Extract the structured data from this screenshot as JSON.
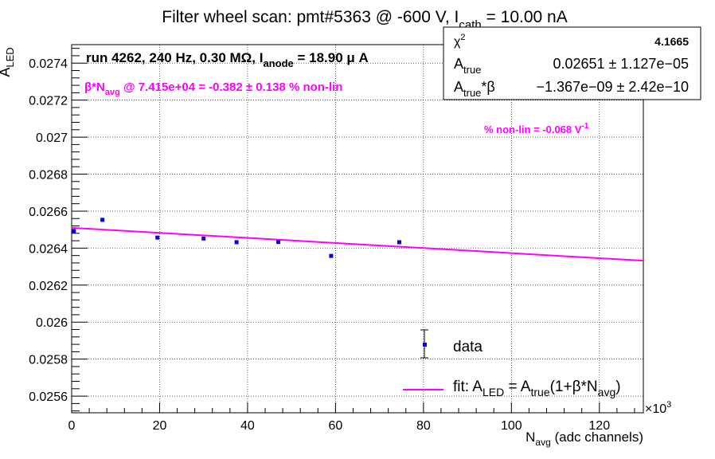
{
  "chart_data": {
    "type": "scatter",
    "title": {
      "main": "Filter wheel scan: pmt#5363 @  -600 V, I",
      "main_sub": "cath",
      "main_tail": " = 10.00 nA"
    },
    "xlabel": {
      "main": "N",
      "sub": "avg",
      "tail": " (adc channels)"
    },
    "ylabel": {
      "main": "A",
      "sub": "LED"
    },
    "x_multiplier": {
      "main": "×10",
      "sup": "3"
    },
    "xlim": [
      0,
      130
    ],
    "ylim": [
      0.02551,
      0.0275
    ],
    "x_ticks": [
      0,
      20,
      40,
      60,
      80,
      100,
      120
    ],
    "x_tick_labels": [
      "0",
      "20",
      "40",
      "60",
      "80",
      "100",
      "120"
    ],
    "y_ticks": [
      0.0256,
      0.0258,
      0.026,
      0.0262,
      0.0264,
      0.0266,
      0.0268,
      0.027,
      0.0272,
      0.0274
    ],
    "y_tick_labels": [
      "0.0256",
      "0.0258",
      "0.026",
      "0.0262",
      "0.0264",
      "0.0266",
      "0.0268",
      "0.027",
      "0.0272",
      "0.0274"
    ],
    "grid": true,
    "series": [
      {
        "name": "data",
        "kind": "points",
        "color": "#0000ff",
        "points": [
          {
            "x": 0.5,
            "y": 0.026493,
            "err": 6e-06
          },
          {
            "x": 7.0,
            "y": 0.026553,
            "err": 6e-06
          },
          {
            "x": 19.5,
            "y": 0.026457,
            "err": 6e-06
          },
          {
            "x": 30.0,
            "y": 0.026452,
            "err": 5e-06
          },
          {
            "x": 37.5,
            "y": 0.026432,
            "err": 6e-06
          },
          {
            "x": 47.0,
            "y": 0.026433,
            "err": 7e-06
          },
          {
            "x": 59.0,
            "y": 0.026358,
            "err": 7e-06
          },
          {
            "x": 74.5,
            "y": 0.026432,
            "err": 4e-06
          }
        ]
      },
      {
        "name": "fit",
        "kind": "line",
        "color": "#ff00ff",
        "x": [
          0,
          130
        ],
        "y": [
          0.02651,
          0.026332
        ]
      }
    ],
    "legend": {
      "position": "bottom-right",
      "data_label": "data",
      "fit_label": {
        "p1": "fit: A",
        "s1": "LED",
        "p2": " = A",
        "s2": "true",
        "p3": "(1+β*N",
        "s3": "avg",
        "p4": ")"
      }
    },
    "annotations": {
      "run": {
        "p1": "run 4262, 240 Hz, 0.30 MΩ, I",
        "s1": "anode",
        "p2": " = 18.90 μ A"
      },
      "nonlin_avg": {
        "p1": "β*N",
        "s1": "avg",
        "p2": " @ 7.415e+04 = -0.382 ± 0.138 % non-lin"
      },
      "nonlin_per_volt": {
        "p1": "% non-lin = -0.068 V",
        "sup": "-1"
      }
    },
    "stats": {
      "chi2": {
        "label": "χ",
        "label_sup": "2",
        "value": "4.1665"
      },
      "a_true": {
        "label": "A",
        "label_sub": "true",
        "value": "0.02651 ± 1.127e−05"
      },
      "a_true_beta": {
        "label": "A",
        "label_sub": "true",
        "label_tail": "*β",
        "value": "−1.367e−09 ± 2.42e−10"
      }
    },
    "colors": {
      "data": "#0000ff",
      "fit": "#ff00ff",
      "annotation": "#ff00ff",
      "text": "#000000"
    }
  }
}
